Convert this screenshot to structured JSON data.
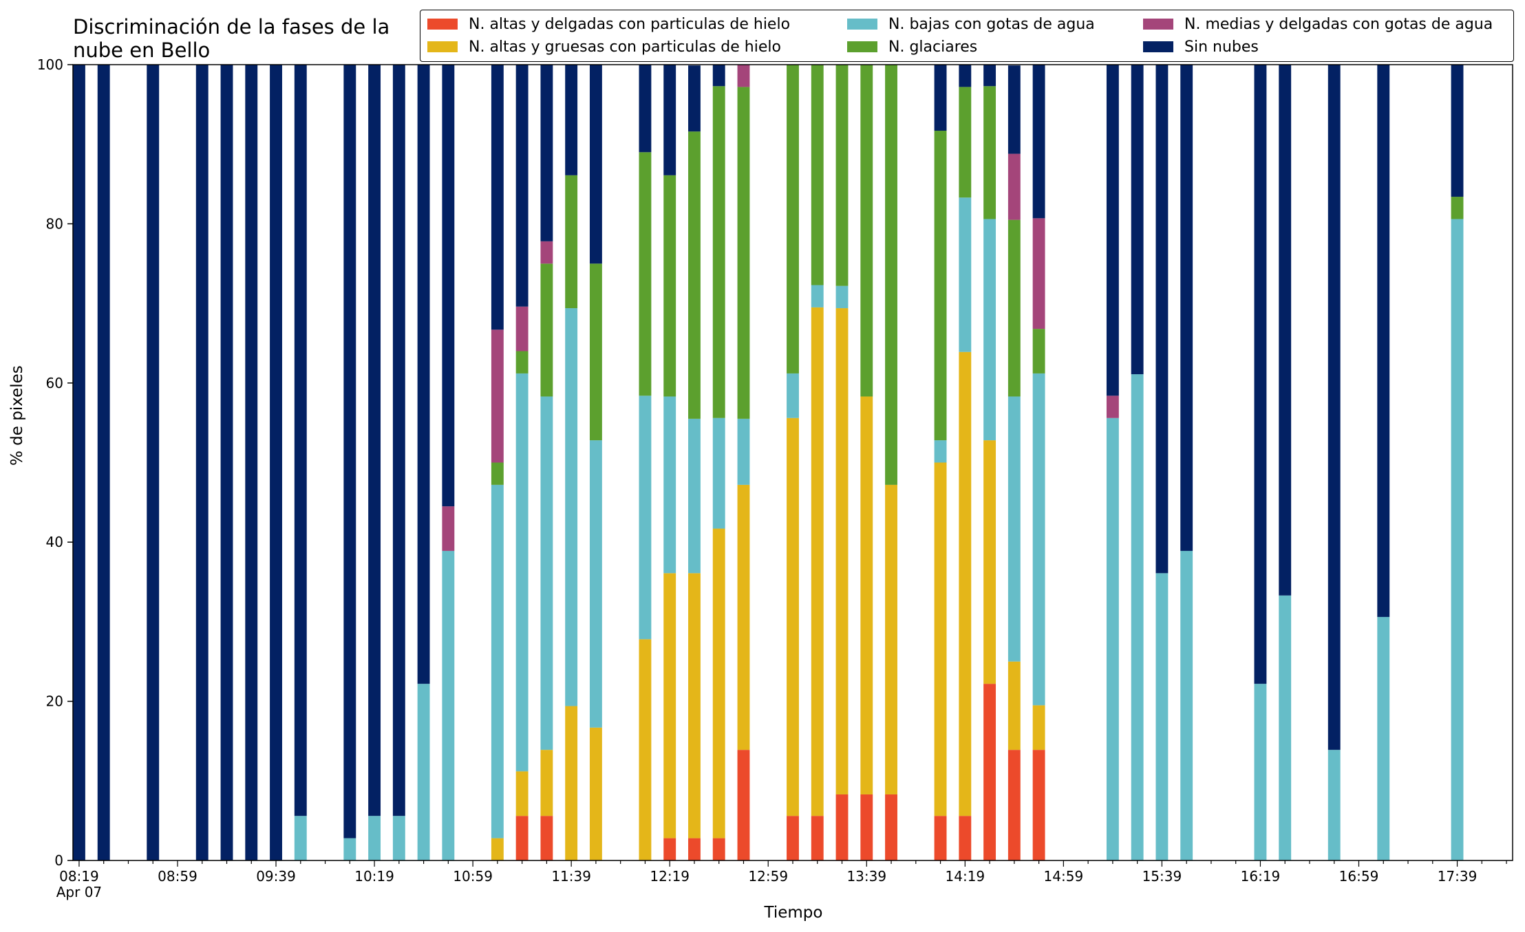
{
  "chart_data": {
    "type": "bar",
    "stacked": true,
    "title": "Discriminación de la fases de la\nnube en Bello",
    "xlabel": "Tiempo",
    "ylabel": "% de pixeles",
    "ylim": [
      0,
      100
    ],
    "yticks": [
      "0",
      "20",
      "40",
      "60",
      "80",
      "100"
    ],
    "grid": false,
    "legend_position": "top-right",
    "x_start": "08:19",
    "x_step_minutes": 5,
    "x_slot_count": 117,
    "x_tick_labels": [
      "08:19\nApr 07",
      "08:59",
      "09:39",
      "10:19",
      "10:59",
      "11:39",
      "12:19",
      "12:59",
      "13:39",
      "14:19",
      "14:59",
      "15:39",
      "16:19",
      "16:59",
      "17:39"
    ],
    "x_tick_slot_positions": [
      0,
      8,
      16,
      24,
      32,
      40,
      48,
      56,
      64,
      72,
      80,
      88,
      96,
      104,
      112
    ],
    "bar_slots": [
      0,
      2,
      6,
      10,
      12,
      14,
      16,
      18,
      22,
      24,
      26,
      28,
      30,
      34,
      36,
      38,
      40,
      42,
      46,
      48,
      50,
      52,
      54,
      58,
      60,
      62,
      64,
      66,
      70,
      72,
      74,
      76,
      78,
      84,
      86,
      88,
      90,
      96,
      98,
      102,
      106,
      112
    ],
    "series": [
      {
        "name": "N. altas y delgadas con particulas de hielo",
        "color": "#ec4a2b",
        "values": [
          0,
          0,
          0,
          0,
          0,
          0,
          0,
          0,
          0,
          0,
          0,
          0,
          0,
          0,
          5.6,
          5.6,
          0,
          0,
          0,
          2.8,
          2.8,
          2.8,
          13.9,
          5.6,
          5.6,
          8.3,
          8.3,
          8.3,
          5.6,
          5.6,
          22.2,
          13.9,
          13.9,
          0,
          0,
          0,
          0,
          0,
          0,
          0,
          0,
          0
        ]
      },
      {
        "name": "N. altas y gruesas con particulas de hielo",
        "color": "#e4b619",
        "values": [
          0,
          0,
          0,
          0,
          0,
          0,
          0,
          0,
          0,
          0,
          0,
          0,
          0,
          2.8,
          5.6,
          8.3,
          19.4,
          16.7,
          27.8,
          33.3,
          33.3,
          38.9,
          33.3,
          50,
          63.9,
          61.1,
          50,
          38.9,
          44.4,
          58.3,
          30.6,
          11.1,
          5.6,
          0,
          0,
          0,
          0,
          0,
          0,
          0,
          0,
          0
        ]
      },
      {
        "name": "N. bajas con gotas de agua",
        "color": "#66bdc8",
        "values": [
          0,
          0,
          0,
          0,
          0,
          0,
          0,
          5.6,
          2.8,
          5.6,
          5.6,
          22.2,
          38.9,
          44.4,
          50,
          44.4,
          50,
          36.1,
          30.6,
          22.2,
          19.4,
          13.9,
          8.3,
          5.6,
          2.8,
          2.8,
          0,
          0,
          2.8,
          19.4,
          27.8,
          33.3,
          41.7,
          55.6,
          61.1,
          36.1,
          38.9,
          22.2,
          33.3,
          13.9,
          30.6,
          80.6
        ]
      },
      {
        "name": "N. glaciares",
        "color": "#5ca02e",
        "values": [
          0,
          0,
          0,
          0,
          0,
          0,
          0,
          0,
          0,
          0,
          0,
          0,
          0,
          2.8,
          2.8,
          16.7,
          16.7,
          22.2,
          30.6,
          27.8,
          36.1,
          41.7,
          41.7,
          38.9,
          27.8,
          27.8,
          41.7,
          52.8,
          38.9,
          13.9,
          16.7,
          22.2,
          5.6,
          0,
          0,
          0,
          0,
          0,
          0,
          0,
          0,
          2.8
        ]
      },
      {
        "name": "N. medias y delgadas con gotas de agua",
        "color": "#a4457a",
        "values": [
          0,
          0,
          0,
          0,
          0,
          0,
          0,
          0,
          0,
          0,
          0,
          0,
          5.6,
          16.7,
          5.6,
          2.8,
          0,
          0,
          0,
          0,
          0,
          0,
          2.8,
          0,
          0,
          0,
          0,
          0,
          0,
          0,
          0,
          8.3,
          13.9,
          2.8,
          0,
          0,
          0,
          0,
          0,
          0,
          0,
          0
        ]
      },
      {
        "name": "Sin nubes",
        "color": "#032163",
        "values": [
          100,
          100,
          100,
          100,
          100,
          100,
          100,
          94.4,
          97.2,
          94.4,
          94.4,
          77.8,
          55.6,
          33.3,
          30.6,
          22.2,
          13.9,
          25,
          11.1,
          13.9,
          8.3,
          2.8,
          0,
          0,
          0,
          0,
          0,
          0,
          8.3,
          2.8,
          2.8,
          11.1,
          19.4,
          41.7,
          38.9,
          63.9,
          61.1,
          77.8,
          66.7,
          86.1,
          69.4,
          16.7
        ]
      }
    ]
  }
}
